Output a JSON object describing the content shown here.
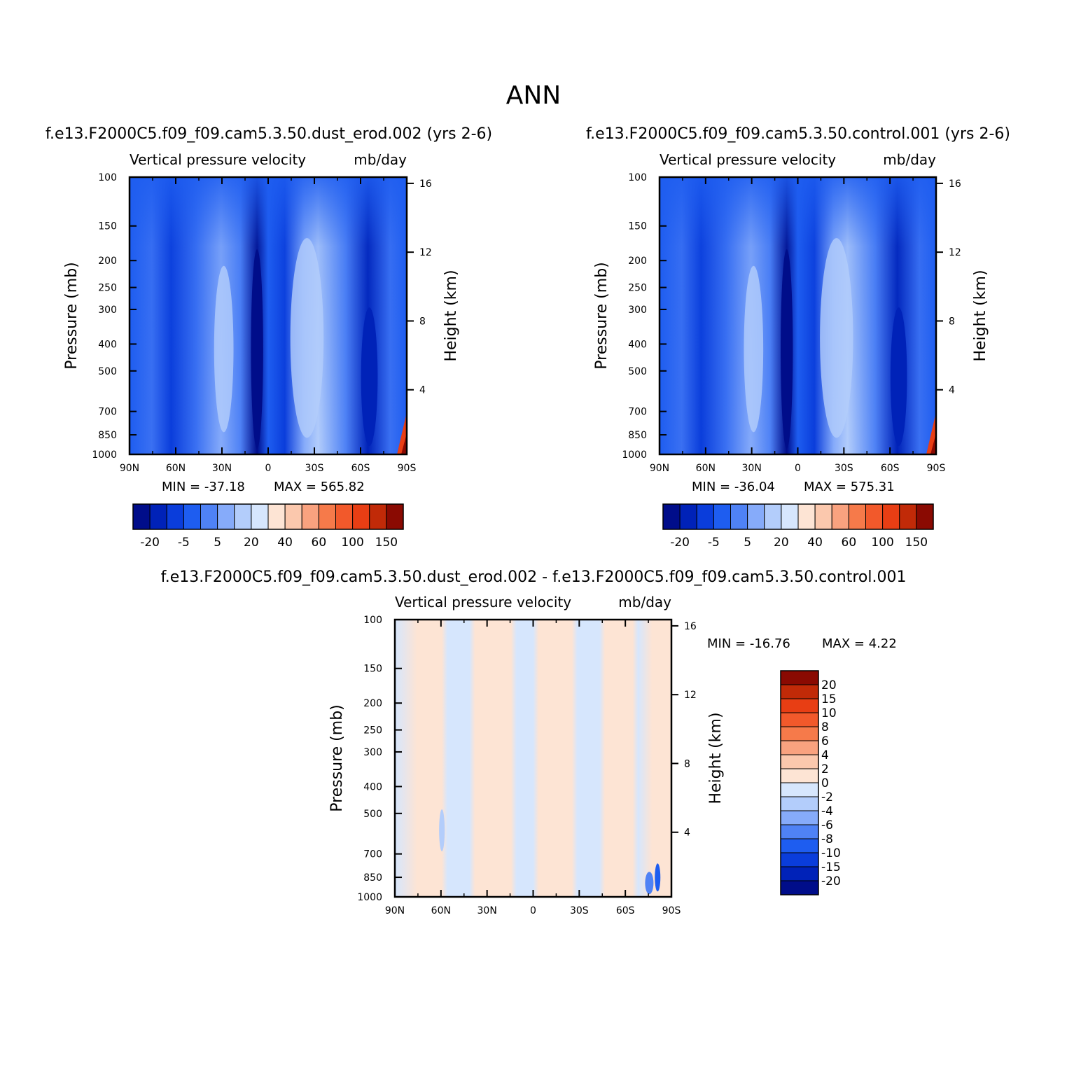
{
  "main_title": "ANN",
  "chart_data": [
    {
      "type": "heatmap",
      "id": "case1",
      "title": "f.e13.F2000C5.f09_f09.cam5.3.50.dust_erod.002 (yrs 2-6)",
      "variable_label": "Vertical pressure velocity",
      "units_label": "mb/day",
      "ylabel": "Pressure (mb)",
      "ylabel_right": "Height (km)",
      "x_ticks": [
        "90N",
        "60N",
        "30N",
        "0",
        "30S",
        "60S",
        "90S"
      ],
      "y_ticks": [
        "100",
        "150",
        "200",
        "250",
        "300",
        "400",
        "500",
        "700",
        "850",
        "1000"
      ],
      "height_ticks": [
        "16",
        "12",
        "8",
        "4"
      ],
      "ylim": [
        1000,
        100
      ],
      "min_label": "MIN = -37.18",
      "max_label": "MAX = 565.82",
      "min": -37.18,
      "max": 565.82,
      "colorbar_levels": [
        "-20",
        "-5",
        "5",
        "20",
        "40",
        "60",
        "100",
        "150"
      ],
      "colorbar_colors": [
        "#000d8a",
        "#0022b8",
        "#0a3ddb",
        "#1e5df0",
        "#4f82f5",
        "#86abfa",
        "#b3cdfb",
        "#d6e6fd",
        "#fde4d4",
        "#fbc8ad",
        "#f9a27f",
        "#f67a4a",
        "#f2592b",
        "#e83e14",
        "#c12a08",
        "#8a0a02"
      ]
    },
    {
      "type": "heatmap",
      "id": "case2",
      "title": "f.e13.F2000C5.f09_f09.cam5.3.50.control.001 (yrs 2-6)",
      "variable_label": "Vertical pressure velocity",
      "units_label": "mb/day",
      "ylabel": "Pressure (mb)",
      "ylabel_right": "Height (km)",
      "x_ticks": [
        "90N",
        "60N",
        "30N",
        "0",
        "30S",
        "60S",
        "90S"
      ],
      "y_ticks": [
        "100",
        "150",
        "200",
        "250",
        "300",
        "400",
        "500",
        "700",
        "850",
        "1000"
      ],
      "height_ticks": [
        "16",
        "12",
        "8",
        "4"
      ],
      "ylim": [
        1000,
        100
      ],
      "min_label": "MIN = -36.04",
      "max_label": "MAX = 575.31",
      "min": -36.04,
      "max": 575.31,
      "colorbar_levels": [
        "-20",
        "-5",
        "5",
        "20",
        "40",
        "60",
        "100",
        "150"
      ],
      "colorbar_colors": [
        "#000d8a",
        "#0022b8",
        "#0a3ddb",
        "#1e5df0",
        "#4f82f5",
        "#86abfa",
        "#b3cdfb",
        "#d6e6fd",
        "#fde4d4",
        "#fbc8ad",
        "#f9a27f",
        "#f67a4a",
        "#f2592b",
        "#e83e14",
        "#c12a08",
        "#8a0a02"
      ]
    },
    {
      "type": "heatmap",
      "id": "diff",
      "title": "f.e13.F2000C5.f09_f09.cam5.3.50.dust_erod.002 - f.e13.F2000C5.f09_f09.cam5.3.50.control.001",
      "variable_label": "Vertical pressure velocity",
      "units_label": "mb/day",
      "ylabel": "Pressure (mb)",
      "ylabel_right": "Height (km)",
      "x_ticks": [
        "90N",
        "60N",
        "30N",
        "0",
        "30S",
        "60S",
        "90S"
      ],
      "y_ticks": [
        "100",
        "150",
        "200",
        "250",
        "300",
        "400",
        "500",
        "700",
        "850",
        "1000"
      ],
      "height_ticks": [
        "16",
        "12",
        "8",
        "4"
      ],
      "ylim": [
        1000,
        100
      ],
      "min_label": "MIN = -16.76",
      "max_label": "MAX =    4.22",
      "min": -16.76,
      "max": 4.22,
      "colorbar_levels": [
        "20",
        "15",
        "10",
        "8",
        "6",
        "4",
        "2",
        "0",
        "-2",
        "-4",
        "-6",
        "-8",
        "-10",
        "-15",
        "-20"
      ],
      "colorbar_colors": [
        "#8a0a02",
        "#c12a08",
        "#e83e14",
        "#f2592b",
        "#f67a4a",
        "#f9a27f",
        "#fbc8ad",
        "#fde4d4",
        "#d6e6fd",
        "#b3cdfb",
        "#86abfa",
        "#4f82f5",
        "#1e5df0",
        "#0a3ddb",
        "#0022b8",
        "#000d8a"
      ]
    }
  ]
}
